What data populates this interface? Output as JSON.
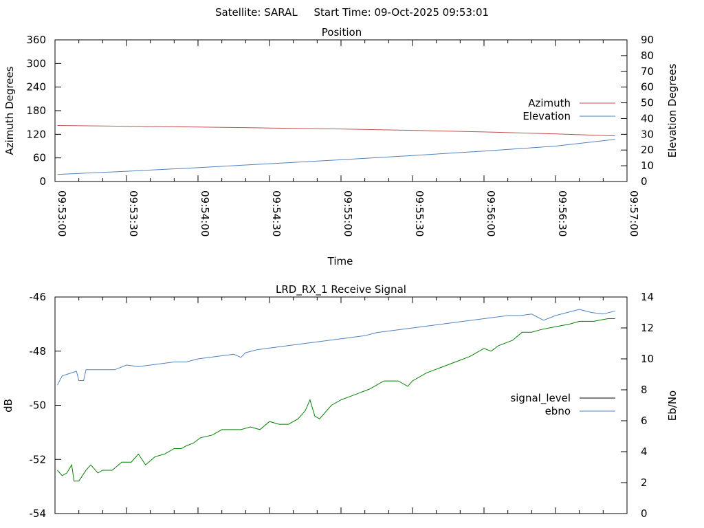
{
  "header": {
    "title": "Satellite: SARAL     Start Time: 09-Oct-2025 09:53:01"
  },
  "chart_data": [
    {
      "type": "line",
      "title": "Position",
      "xlabel": "Time",
      "ylabel": "Azimuth Degrees",
      "y2label": "Elevation Degrees",
      "xlim": [
        "09:53:00",
        "09:57:00"
      ],
      "ylim": [
        0,
        360
      ],
      "y2lim": [
        0,
        90
      ],
      "x_ticks": [
        "09:53:00",
        "09:53:30",
        "09:54:00",
        "09:54:30",
        "09:55:00",
        "09:55:30",
        "09:56:00",
        "09:56:30",
        "09:57:00"
      ],
      "y_ticks": [
        "0",
        "60",
        "120",
        "180",
        "240",
        "300",
        "360"
      ],
      "y2_ticks": [
        "0",
        "10",
        "20",
        "30",
        "40",
        "50",
        "60",
        "70",
        "80",
        "90"
      ],
      "legend_position": "right",
      "series": [
        {
          "name": "Azimuth",
          "axis": "left",
          "color": "#c0504d",
          "x": [
            "09:53:01",
            "09:53:30",
            "09:54:00",
            "09:54:30",
            "09:55:00",
            "09:55:30",
            "09:56:00",
            "09:56:30",
            "09:56:55"
          ],
          "values": [
            142.5,
            140.5,
            138.5,
            136,
            133.5,
            130,
            126,
            121,
            116
          ]
        },
        {
          "name": "Elevation",
          "axis": "right",
          "color": "#4f81bd",
          "x": [
            "09:53:01",
            "09:53:30",
            "09:54:00",
            "09:54:30",
            "09:55:00",
            "09:55:30",
            "09:56:00",
            "09:56:30",
            "09:56:55"
          ],
          "values": [
            4.5,
            6.5,
            8.8,
            11.3,
            13.8,
            16.5,
            19.3,
            22.5,
            26.8
          ]
        }
      ]
    },
    {
      "type": "line",
      "title": "LRD_RX_1 Receive Signal",
      "xlabel": "",
      "ylabel": "dB",
      "y2label": "Eb/No",
      "xlim": [
        "09:53:00",
        "09:57:00"
      ],
      "ylim": [
        -54,
        -46
      ],
      "y2lim": [
        0,
        14
      ],
      "y_ticks": [
        "-54",
        "-52",
        "-50",
        "-48",
        "-46"
      ],
      "y2_ticks": [
        "0",
        "2",
        "4",
        "6",
        "8",
        "10",
        "12",
        "14"
      ],
      "legend_position": "right",
      "series": [
        {
          "name": "signal_level",
          "axis": "left",
          "color": "#008000",
          "x": [
            "09:53:01",
            "09:53:03",
            "09:53:05",
            "09:53:07",
            "09:53:08",
            "09:53:10",
            "09:53:13",
            "09:53:15",
            "09:53:18",
            "09:53:20",
            "09:53:24",
            "09:53:28",
            "09:53:32",
            "09:53:35",
            "09:53:38",
            "09:53:42",
            "09:53:46",
            "09:53:50",
            "09:53:53",
            "09:53:55",
            "09:53:58",
            "09:54:01",
            "09:54:06",
            "09:54:10",
            "09:54:14",
            "09:54:18",
            "09:54:22",
            "09:54:26",
            "09:54:30",
            "09:54:34",
            "09:54:38",
            "09:54:42",
            "09:54:45",
            "09:54:47",
            "09:54:49",
            "09:54:51",
            "09:54:53",
            "09:54:56",
            "09:55:00",
            "09:55:06",
            "09:55:12",
            "09:55:18",
            "09:55:24",
            "09:55:28",
            "09:55:30",
            "09:55:36",
            "09:55:42",
            "09:55:48",
            "09:55:54",
            "09:56:00",
            "09:56:03",
            "09:56:06",
            "09:56:12",
            "09:56:16",
            "09:56:20",
            "09:56:24",
            "09:56:30",
            "09:56:36",
            "09:56:40",
            "09:56:46",
            "09:56:52",
            "09:56:55"
          ],
          "values": [
            -52.4,
            -52.6,
            -52.5,
            -52.2,
            -52.8,
            -52.8,
            -52.4,
            -52.2,
            -52.5,
            -52.4,
            -52.4,
            -52.1,
            -52.1,
            -51.8,
            -52.2,
            -51.9,
            -51.8,
            -51.6,
            -51.6,
            -51.5,
            -51.4,
            -51.2,
            -51.1,
            -50.9,
            -50.9,
            -50.9,
            -50.8,
            -50.9,
            -50.6,
            -50.7,
            -50.7,
            -50.5,
            -50.2,
            -49.8,
            -50.4,
            -50.5,
            -50.3,
            -50.0,
            -49.8,
            -49.6,
            -49.4,
            -49.1,
            -49.1,
            -49.3,
            -49.1,
            -48.8,
            -48.6,
            -48.4,
            -48.2,
            -47.9,
            -48.0,
            -47.8,
            -47.6,
            -47.3,
            -47.3,
            -47.2,
            -47.1,
            -47.0,
            -46.9,
            -46.9,
            -46.8,
            -46.8
          ]
        },
        {
          "name": "ebno",
          "axis": "right",
          "color": "#4f81bd",
          "x": [
            "09:53:01",
            "09:53:03",
            "09:53:05",
            "09:53:09",
            "09:53:10",
            "09:53:12",
            "09:53:13",
            "09:53:15",
            "09:53:20",
            "09:53:25",
            "09:53:30",
            "09:53:35",
            "09:53:40",
            "09:53:45",
            "09:53:50",
            "09:53:55",
            "09:54:00",
            "09:54:05",
            "09:54:10",
            "09:54:15",
            "09:54:18",
            "09:54:20",
            "09:54:25",
            "09:54:30",
            "09:54:35",
            "09:54:40",
            "09:54:45",
            "09:54:50",
            "09:54:55",
            "09:55:00",
            "09:55:05",
            "09:55:10",
            "09:55:15",
            "09:55:20",
            "09:55:25",
            "09:55:30",
            "09:55:35",
            "09:55:40",
            "09:55:45",
            "09:55:50",
            "09:55:55",
            "09:56:00",
            "09:56:05",
            "09:56:10",
            "09:56:15",
            "09:56:20",
            "09:56:25",
            "09:56:30",
            "09:56:35",
            "09:56:40",
            "09:56:45",
            "09:56:50",
            "09:56:55"
          ],
          "values": [
            8.3,
            8.9,
            9.0,
            9.2,
            8.6,
            8.6,
            9.3,
            9.3,
            9.3,
            9.3,
            9.6,
            9.5,
            9.6,
            9.7,
            9.8,
            9.8,
            10.0,
            10.1,
            10.2,
            10.3,
            10.1,
            10.4,
            10.6,
            10.7,
            10.8,
            10.9,
            11.0,
            11.1,
            11.2,
            11.3,
            11.4,
            11.5,
            11.7,
            11.8,
            11.9,
            12.0,
            12.1,
            12.2,
            12.3,
            12.4,
            12.5,
            12.6,
            12.7,
            12.8,
            12.8,
            12.9,
            12.5,
            12.8,
            13.0,
            13.2,
            13.0,
            12.9,
            13.1
          ]
        }
      ]
    }
  ]
}
